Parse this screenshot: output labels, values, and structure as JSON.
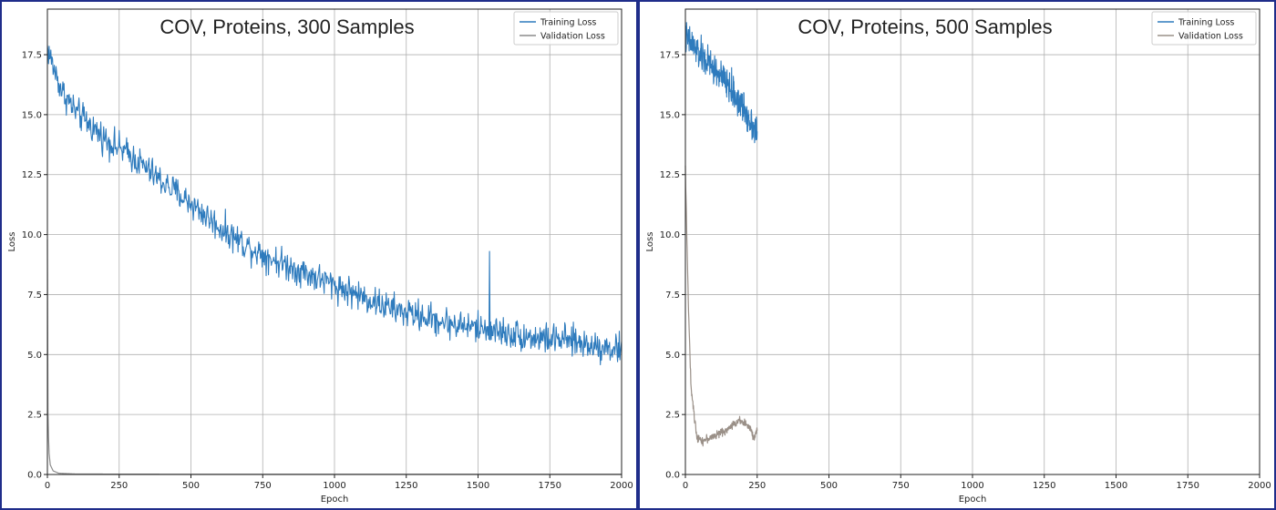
{
  "chart_data": [
    {
      "type": "line",
      "title": "COV, Proteins, 300 Samples",
      "xlabel": "Epoch",
      "ylabel": "Loss",
      "xlim": [
        0,
        2000
      ],
      "ylim": [
        0,
        19.4
      ],
      "xticks": [
        0,
        250,
        500,
        750,
        1000,
        1250,
        1500,
        1750,
        2000
      ],
      "yticks": [
        0.0,
        2.5,
        5.0,
        7.5,
        10.0,
        12.5,
        15.0,
        17.5
      ],
      "grid": true,
      "legend_position": "top-right",
      "series": [
        {
          "name": "Training Loss",
          "color": "#2e7bbd",
          "noise": 0.45,
          "spikes": [
            [
              1540,
              9.3
            ]
          ],
          "x": [
            0,
            20,
            50,
            100,
            200,
            300,
            400,
            500,
            600,
            700,
            800,
            900,
            1000,
            1100,
            1200,
            1300,
            1400,
            1500,
            1600,
            1700,
            1800,
            1900,
            2000
          ],
          "values": [
            17.8,
            17.0,
            16.0,
            15.1,
            14.0,
            13.2,
            12.2,
            11.3,
            10.3,
            9.5,
            8.9,
            8.4,
            7.9,
            7.4,
            6.9,
            6.6,
            6.3,
            6.1,
            5.9,
            5.7,
            5.6,
            5.4,
            5.2
          ]
        },
        {
          "name": "Validation Loss",
          "color": "#8c8c8c",
          "noise": 0.0,
          "x": [
            0,
            1,
            2,
            5,
            10,
            20,
            40,
            100,
            500,
            1000,
            1500,
            2000
          ],
          "values": [
            9.8,
            5.0,
            2.6,
            1.0,
            0.4,
            0.15,
            0.05,
            0.02,
            0.01,
            0.01,
            0.01,
            0.01
          ]
        }
      ]
    },
    {
      "type": "line",
      "title": "COV, Proteins, 500 Samples",
      "xlabel": "Epoch",
      "ylabel": "Loss",
      "xlim": [
        0,
        2000
      ],
      "ylim": [
        0,
        19.4
      ],
      "xticks": [
        0,
        250,
        500,
        750,
        1000,
        1250,
        1500,
        1750,
        2000
      ],
      "yticks": [
        0.0,
        2.5,
        5.0,
        7.5,
        10.0,
        12.5,
        15.0,
        17.5
      ],
      "grid": true,
      "legend_position": "top-right",
      "series": [
        {
          "name": "Training Loss",
          "color": "#2e7bbd",
          "noise": 0.5,
          "spikes": [],
          "x": [
            0,
            25,
            50,
            100,
            150,
            200,
            250
          ],
          "values": [
            18.2,
            17.9,
            17.5,
            16.9,
            16.2,
            15.3,
            14.3
          ]
        },
        {
          "name": "Validation Loss",
          "color": "#9a9088",
          "noise": 0.12,
          "x": [
            0,
            3,
            6,
            10,
            15,
            20,
            30,
            40,
            60,
            100,
            150,
            190,
            220,
            240,
            250
          ],
          "values": [
            12.8,
            11.0,
            9.5,
            7.3,
            5.2,
            3.6,
            2.5,
            1.6,
            1.4,
            1.6,
            1.9,
            2.3,
            2.0,
            1.5,
            1.9
          ]
        }
      ]
    }
  ]
}
